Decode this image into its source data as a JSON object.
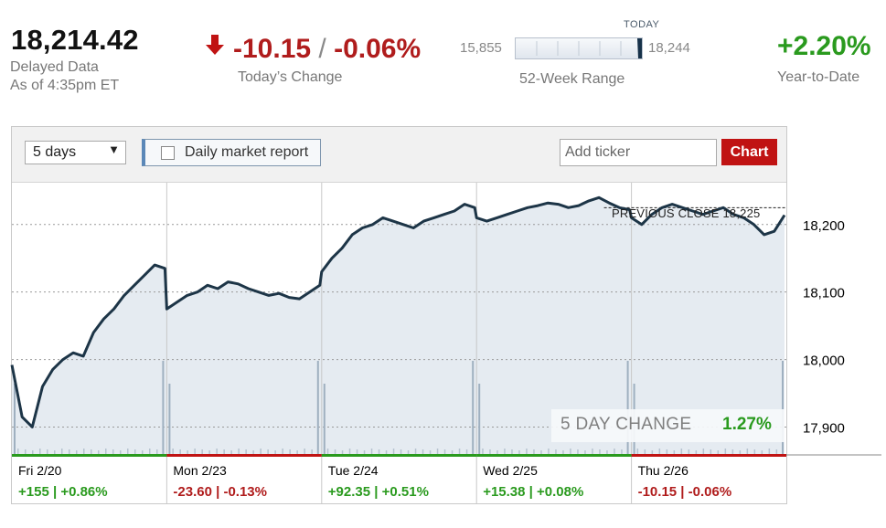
{
  "quote": {
    "price": "18,214.42",
    "delayed_line1": "Delayed Data",
    "delayed_line2": "As of 4:35pm ET",
    "change_points": "-10.15",
    "change_sep": "/",
    "change_percent": "-0.06%",
    "change_label": "Today’s Change",
    "range_low": "15,855",
    "range_high": "18,244",
    "range_today_label": "TODAY",
    "range_label": "52-Week Range",
    "range_position": 0.99,
    "ytd": "+2.20%",
    "ytd_label": "Year-to-Date",
    "colors": {
      "down": "#b01c1c",
      "up": "#2a9a1e",
      "line": "#1d3547",
      "area": "#e5ebf1"
    }
  },
  "toolbar": {
    "period_value": "5 days",
    "report_label": "Daily market report",
    "ticker_placeholder": "Add ticker",
    "chart_button": "Chart"
  },
  "chart_data": {
    "type": "area",
    "ylabels": [
      "18,200",
      "18,100",
      "18,000",
      "17,900"
    ],
    "yticks": [
      18200,
      18100,
      18000,
      17900
    ],
    "ylim": [
      17860,
      18262
    ],
    "previous_close": 18225,
    "previous_close_label": "PREVIOUS CLOSE 18,225",
    "days": [
      {
        "label": "Fri 2/20",
        "stat": "+155 | +0.86%",
        "dir": "up",
        "values": [
          17992,
          17915,
          17900,
          17960,
          17985,
          18000,
          18010,
          18005,
          18040,
          18060,
          18075,
          18095,
          18110,
          18125,
          18140,
          18135
        ]
      },
      {
        "label": "Mon 2/23",
        "stat": "-23.60 | -0.13%",
        "dir": "down",
        "values": [
          18075,
          18085,
          18095,
          18100,
          18110,
          18105,
          18115,
          18112,
          18105,
          18100,
          18095,
          18098,
          18092,
          18090,
          18100,
          18110
        ]
      },
      {
        "label": "Tue 2/24",
        "stat": "+92.35 | +0.51%",
        "dir": "up",
        "values": [
          18130,
          18150,
          18165,
          18185,
          18195,
          18200,
          18210,
          18205,
          18200,
          18195,
          18205,
          18210,
          18215,
          18220,
          18230,
          18225
        ]
      },
      {
        "label": "Wed 2/25",
        "stat": "+15.38 | +0.08%",
        "dir": "up",
        "values": [
          18210,
          18205,
          18210,
          18215,
          18220,
          18225,
          18228,
          18232,
          18230,
          18225,
          18228,
          18235,
          18240,
          18232,
          18225,
          18222
        ]
      },
      {
        "label": "Thu 2/26",
        "stat": "-10.15 | -0.06%",
        "dir": "down",
        "values": [
          18210,
          18200,
          18215,
          18225,
          18230,
          18225,
          18220,
          18215,
          18220,
          18225,
          18215,
          18210,
          18200,
          18185,
          18190,
          18214
        ]
      }
    ],
    "summary_label": "5 DAY CHANGE",
    "summary_value": "1.27%",
    "grid": true
  }
}
